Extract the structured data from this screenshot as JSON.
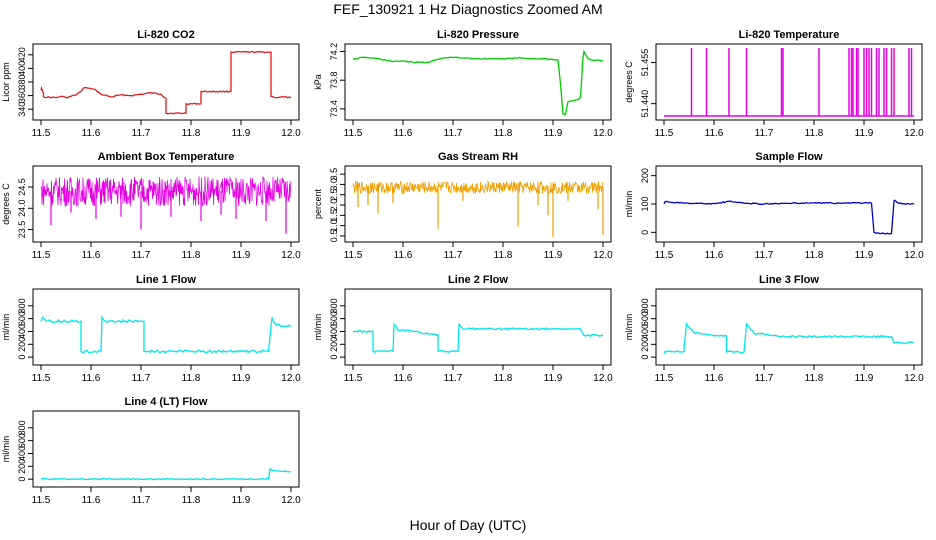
{
  "title": "FEF_130921  1 Hz Diagnostics Zoomed AM",
  "xlabel": "Hour of Day (UTC)",
  "chart_data": [
    {
      "type": "line",
      "title": "Li-820 CO2",
      "ylabel": "Licor ppm",
      "color": "#e31a1c",
      "x_ticks": [
        "11.5",
        "11.6",
        "11.7",
        "11.8",
        "11.9",
        "12.0"
      ],
      "xlim": [
        11.5,
        12.0
      ],
      "y_ticks": [
        "340",
        "360",
        "380",
        "400",
        "420"
      ],
      "ylim": [
        330,
        430
      ],
      "series": [
        {
          "x": [
            11.5,
            11.501,
            11.505,
            11.505,
            11.53,
            11.54,
            11.55,
            11.56,
            11.57,
            11.58,
            11.585,
            11.59,
            11.6,
            11.61,
            11.62,
            11.64,
            11.66,
            11.68,
            11.7,
            11.72,
            11.74,
            11.75,
            11.75,
            11.79,
            11.79,
            11.82,
            11.82,
            11.88,
            11.88,
            11.96,
            11.96,
            11.97,
            11.98,
            12.0
          ],
          "y": [
            368,
            371,
            363,
            358,
            357,
            359,
            357,
            359,
            361,
            366,
            371,
            372,
            370,
            368,
            362,
            358,
            361,
            360,
            362,
            364,
            362,
            356,
            334,
            334,
            348,
            348,
            366,
            366,
            424,
            424,
            359,
            357,
            358,
            357
          ]
        }
      ]
    },
    {
      "type": "line",
      "title": "Li-820 Pressure",
      "ylabel": "kPa",
      "color": "#00cc00",
      "x_ticks": [
        "11.5",
        "11.6",
        "11.7",
        "11.8",
        "11.9",
        "12.0"
      ],
      "xlim": [
        11.5,
        12.0
      ],
      "y_ticks": [
        "73.4",
        "73.8",
        "74.2"
      ],
      "ylim": [
        73.3,
        74.25
      ],
      "series": [
        {
          "x": [
            11.5,
            11.52,
            11.55,
            11.58,
            11.6,
            11.62,
            11.65,
            11.68,
            11.7,
            11.72,
            11.75,
            11.78,
            11.8,
            11.83,
            11.86,
            11.88,
            11.9,
            11.91,
            11.915,
            11.92,
            11.925,
            11.93,
            11.95,
            11.955,
            11.96,
            11.962,
            11.965,
            11.97,
            11.98,
            12.0
          ],
          "y": [
            74.09,
            74.12,
            74.1,
            74.06,
            74.07,
            74.05,
            74.05,
            74.11,
            74.12,
            74.11,
            74.1,
            74.1,
            74.1,
            74.11,
            74.1,
            74.1,
            74.09,
            74.08,
            73.75,
            73.33,
            73.32,
            73.5,
            73.53,
            73.56,
            74.12,
            74.2,
            74.16,
            74.1,
            74.08,
            74.07
          ]
        }
      ]
    },
    {
      "type": "line",
      "title": "Li-820 Temperature",
      "ylabel": "degrees C",
      "color": "#e600e6",
      "x_ticks": [
        "11.5",
        "11.6",
        "11.7",
        "11.8",
        "11.9",
        "12.0"
      ],
      "xlim": [
        11.5,
        12.0
      ],
      "y_ticks": [
        "51.440",
        "51.455"
      ],
      "ylim": [
        51.4355,
        51.4603
      ],
      "baseline": 51.4355,
      "spike_top": 51.4603,
      "spikes": [
        11.555,
        11.585,
        11.63,
        11.665,
        11.735,
        11.738,
        11.81,
        11.87,
        11.875,
        11.878,
        11.885,
        11.888,
        11.9,
        11.905,
        11.91,
        11.915,
        11.925,
        11.93,
        11.94,
        11.945,
        11.955,
        11.96,
        11.99,
        11.995
      ]
    },
    {
      "type": "line",
      "title": "Ambient Box Temperature",
      "ylabel": "degrees C",
      "color": "#e600e6",
      "x_ticks": [
        "11.5",
        "11.6",
        "11.7",
        "11.8",
        "11.9",
        "12.0"
      ],
      "xlim": [
        11.5,
        12.0
      ],
      "y_ticks": [
        "23.5",
        "24.0",
        "24.5"
      ],
      "ylim": [
        23.3,
        24.9
      ],
      "band": {
        "low": 24.05,
        "high": 24.75,
        "mean": 24.4
      },
      "dips": [
        [
          11.52,
          23.6
        ],
        [
          11.56,
          23.9
        ],
        [
          11.61,
          23.75
        ],
        [
          11.66,
          23.8
        ],
        [
          11.7,
          23.5
        ],
        [
          11.76,
          23.8
        ],
        [
          11.82,
          23.7
        ],
        [
          11.86,
          23.85
        ],
        [
          11.89,
          23.75
        ],
        [
          11.95,
          23.7
        ],
        [
          11.99,
          23.4
        ]
      ]
    },
    {
      "type": "line",
      "title": "Gas Stream RH",
      "ylabel": "percent",
      "color": "#f0a000",
      "x_ticks": [
        "11.5",
        "11.6",
        "11.7",
        "11.8",
        "11.9",
        "12.0"
      ],
      "xlim": [
        11.5,
        12.0
      ],
      "y_ticks": [
        "0.5",
        "1.0",
        "1.5",
        "2.0",
        "2.5",
        "3.0",
        "3.5"
      ],
      "ylim": [
        0.4,
        3.7
      ],
      "band": {
        "low": 2.55,
        "high": 3.15,
        "mean": 2.9
      },
      "dips": [
        [
          11.51,
          1.9
        ],
        [
          11.53,
          2.0
        ],
        [
          11.55,
          1.6
        ],
        [
          11.58,
          2.1
        ],
        [
          11.67,
          0.85
        ],
        [
          11.72,
          2.2
        ],
        [
          11.83,
          0.95
        ],
        [
          11.87,
          2.0
        ],
        [
          11.89,
          1.5
        ],
        [
          11.9,
          0.45
        ],
        [
          11.93,
          2.2
        ],
        [
          11.99,
          1.8
        ],
        [
          12.0,
          0.55
        ]
      ]
    },
    {
      "type": "line",
      "title": "Sample Flow",
      "ylabel": "ml/min",
      "color": "#0000cc",
      "x_ticks": [
        "11.5",
        "11.6",
        "11.7",
        "11.8",
        "11.9",
        "12.0"
      ],
      "xlim": [
        11.5,
        12.0
      ],
      "y_ticks": [
        "0",
        "100",
        "200"
      ],
      "ylim": [
        -20,
        220
      ],
      "series": [
        {
          "x": [
            11.5,
            11.502,
            11.53,
            11.56,
            11.6,
            11.63,
            11.66,
            11.7,
            11.75,
            11.8,
            11.85,
            11.9,
            11.915,
            11.92,
            11.925,
            11.95,
            11.955,
            11.96,
            11.962,
            11.97,
            12.0
          ],
          "y": [
            100,
            108,
            104,
            102,
            101,
            109,
            103,
            100,
            102,
            104,
            103,
            104,
            103,
            0,
            -3,
            -5,
            -4,
            110,
            113,
            102,
            100
          ]
        }
      ]
    },
    {
      "type": "line",
      "title": "Line 1 Flow",
      "ylabel": "ml/min",
      "color": "#00e5ee",
      "x_ticks": [
        "11.5",
        "11.6",
        "11.7",
        "11.8",
        "11.9",
        "12.0"
      ],
      "xlim": [
        11.5,
        12.0
      ],
      "y_ticks": [
        "0",
        "200",
        "400",
        "600",
        "800"
      ],
      "ylim": [
        -60,
        1000
      ],
      "series": [
        {
          "x": [
            11.5,
            11.503,
            11.51,
            11.58,
            11.58,
            11.62,
            11.622,
            11.63,
            11.706,
            11.706,
            11.955,
            11.962,
            11.97,
            12.0
          ],
          "y": [
            560,
            620,
            560,
            560,
            90,
            90,
            620,
            560,
            560,
            90,
            90,
            620,
            500,
            480
          ]
        }
      ],
      "noise": 40
    },
    {
      "type": "line",
      "title": "Line 2 Flow",
      "ylabel": "ml/min",
      "color": "#00e5ee",
      "x_ticks": [
        "11.5",
        "11.6",
        "11.7",
        "11.8",
        "11.9",
        "12.0"
      ],
      "xlim": [
        11.5,
        12.0
      ],
      "y_ticks": [
        "0",
        "200",
        "400",
        "600",
        "800"
      ],
      "ylim": [
        -60,
        1000
      ],
      "series": [
        {
          "x": [
            11.5,
            11.54,
            11.54,
            11.58,
            11.582,
            11.59,
            11.62,
            11.67,
            11.67,
            11.71,
            11.712,
            11.72,
            11.8,
            11.9,
            11.955,
            11.962,
            12.0
          ],
          "y": [
            400,
            400,
            90,
            90,
            510,
            420,
            400,
            350,
            90,
            90,
            510,
            440,
            440,
            440,
            440,
            340,
            340
          ]
        }
      ],
      "noise": 30
    },
    {
      "type": "line",
      "title": "Line 3 Flow",
      "ylabel": "ml/min",
      "color": "#00e5ee",
      "x_ticks": [
        "11.5",
        "11.6",
        "11.7",
        "11.8",
        "11.9",
        "12.0"
      ],
      "xlim": [
        11.5,
        12.0
      ],
      "y_ticks": [
        "0",
        "200",
        "400",
        "600",
        "800"
      ],
      "ylim": [
        -60,
        1000
      ],
      "series": [
        {
          "x": [
            11.5,
            11.502,
            11.54,
            11.54,
            11.545,
            11.56,
            11.6,
            11.625,
            11.625,
            11.66,
            11.665,
            11.68,
            11.75,
            11.85,
            11.955,
            11.96,
            11.99,
            12.0
          ],
          "y": [
            50,
            90,
            90,
            140,
            520,
            380,
            330,
            330,
            80,
            80,
            520,
            370,
            320,
            320,
            320,
            220,
            230,
            230
          ]
        }
      ],
      "noise": 30
    },
    {
      "type": "line",
      "title": "Line 4 (LT) Flow",
      "ylabel": "ml/min",
      "color": "#00e5ee",
      "x_ticks": [
        "11.5",
        "11.6",
        "11.7",
        "11.8",
        "11.9",
        "12.0"
      ],
      "xlim": [
        11.5,
        12.0
      ],
      "y_ticks": [
        "0",
        "200",
        "400",
        "600",
        "800"
      ],
      "ylim": [
        -60,
        1000
      ],
      "series": [
        {
          "x": [
            11.5,
            11.7,
            11.9,
            11.955,
            11.958,
            11.962,
            11.97,
            12.0
          ],
          "y": [
            2,
            2,
            2,
            2,
            160,
            140,
            130,
            120
          ]
        }
      ]
    }
  ]
}
